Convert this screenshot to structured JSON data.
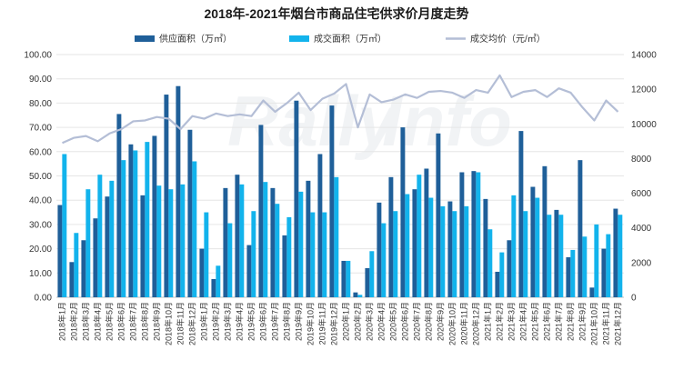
{
  "chart_data": {
    "type": "bar",
    "title": "2018年-2021年烟台市商品住宅供求价月度走势",
    "legend": [
      {
        "name": "供应面积（万㎡）",
        "color": "#1f5f99",
        "kind": "bar"
      },
      {
        "name": "成交面积（万㎡）",
        "color": "#12b3ec",
        "kind": "bar"
      },
      {
        "name": "成交均价（元/㎡）",
        "color": "#b4bed6",
        "kind": "line"
      }
    ],
    "categories": [
      "2018年1月",
      "2018年2月",
      "2018年3月",
      "2018年4月",
      "2018年5月",
      "2018年6月",
      "2018年7月",
      "2018年8月",
      "2018年9月",
      "2018年10月",
      "2018年11月",
      "2018年12月",
      "2019年1月",
      "2019年2月",
      "2019年3月",
      "2019年4月",
      "2019年5月",
      "2019年6月",
      "2019年7月",
      "2019年8月",
      "2019年9月",
      "2019年10月",
      "2019年11月",
      "2019年12月",
      "2020年1月",
      "2020年2月",
      "2020年3月",
      "2020年4月",
      "2020年5月",
      "2020年6月",
      "2020年7月",
      "2020年8月",
      "2020年9月",
      "2020年10月",
      "2020年11月",
      "2020年12月",
      "2021年1月",
      "2021年2月",
      "2021年3月",
      "2021年4月",
      "2021年5月",
      "2021年6月",
      "2021年7月",
      "2021年8月",
      "2021年9月",
      "2021年10月",
      "2021年11月",
      "2021年12月"
    ],
    "series": [
      {
        "name": "供应面积（万㎡）",
        "axis": "left",
        "values": [
          38,
          14.5,
          23.5,
          32.5,
          41.5,
          75.5,
          63,
          42,
          66.5,
          83.5,
          87,
          69,
          20,
          7.5,
          45,
          50.5,
          21.5,
          71,
          45,
          25.5,
          81,
          48,
          59,
          79,
          15,
          2,
          12,
          39,
          49.5,
          70,
          44.5,
          53,
          67.5,
          39.5,
          51.5,
          52,
          40.5,
          10.5,
          23.5,
          68.5,
          45.5,
          54,
          36,
          16.5,
          56.5,
          4,
          20,
          36.5
        ]
      },
      {
        "name": "成交面积（万㎡）",
        "axis": "left",
        "values": [
          59,
          26.5,
          44.5,
          50.5,
          48,
          56.5,
          60.5,
          64,
          46,
          44.5,
          46.5,
          56,
          35,
          13,
          30.5,
          46.5,
          35.5,
          47.5,
          38.5,
          33,
          43.5,
          35,
          35,
          49.5,
          15,
          1,
          19,
          30.5,
          35.5,
          42.5,
          50.5,
          41,
          37.5,
          35.5,
          37.5,
          51.5,
          28,
          18.5,
          42,
          35.5,
          41,
          34,
          34,
          19.5,
          25,
          30,
          26,
          34
        ]
      },
      {
        "name": "成交均价（元/㎡）",
        "axis": "right",
        "values": [
          8900,
          9200,
          9300,
          9000,
          9450,
          9700,
          10150,
          10200,
          10400,
          10300,
          9700,
          10450,
          10300,
          10600,
          10450,
          10550,
          10450,
          11350,
          10700,
          11200,
          11800,
          10800,
          11450,
          11750,
          12300,
          9800,
          11700,
          11250,
          11400,
          11700,
          11500,
          11850,
          11900,
          11800,
          11500,
          11950,
          11800,
          12800,
          11550,
          11850,
          11950,
          11550,
          12050,
          11800,
          10950,
          10200,
          11350,
          10700
        ]
      }
    ],
    "left_axis": {
      "min": 0,
      "max": 100,
      "ticks": [
        "0.00",
        "10.00",
        "20.00",
        "30.00",
        "40.00",
        "50.00",
        "60.00",
        "70.00",
        "80.00",
        "90.00",
        "100.00"
      ]
    },
    "right_axis": {
      "min": 0,
      "max": 14000,
      "ticks": [
        "0",
        "2000",
        "4000",
        "6000",
        "8000",
        "10000",
        "12000",
        "14000"
      ]
    },
    "grid": true,
    "legend_position": "top"
  }
}
